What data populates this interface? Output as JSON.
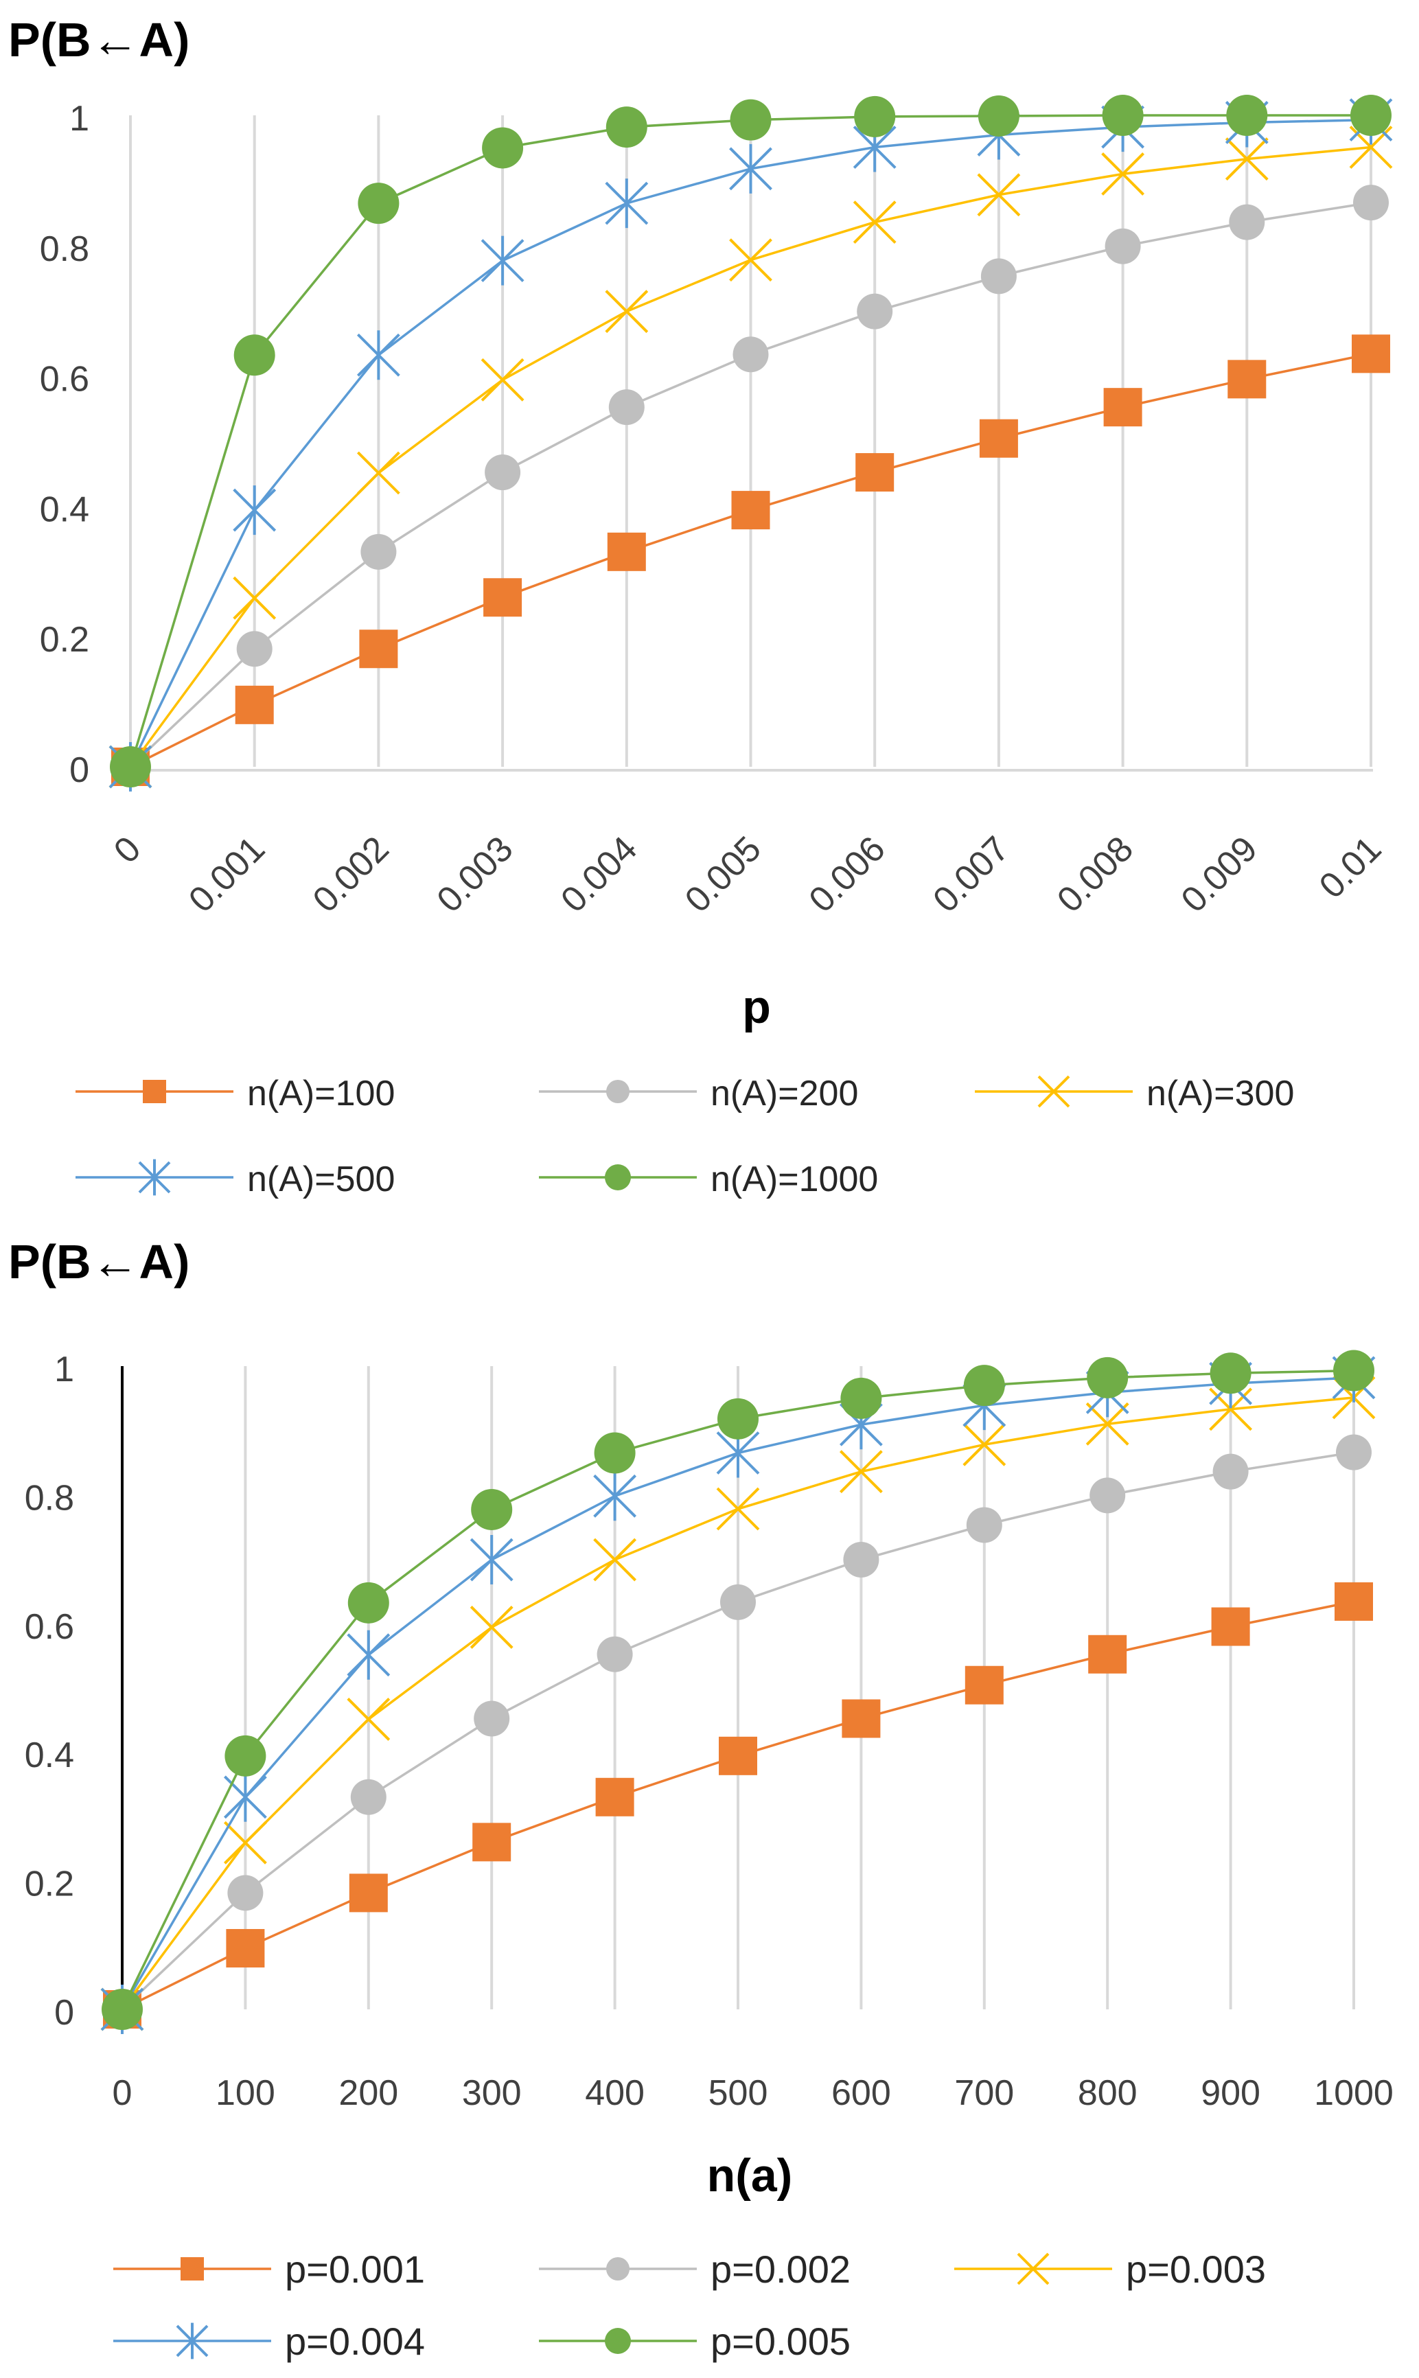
{
  "colors": {
    "series1": "#ED7D31",
    "series2": "#BFBFBF",
    "series3": "#FFC000",
    "series4": "#5B9BD5",
    "series5": "#70AD47",
    "grid": "#D9D9D9",
    "tick_text": "#404040"
  },
  "chart_data": [
    {
      "type": "line",
      "title": "",
      "ylabel": "P(B←A)",
      "xlabel": "p",
      "categories": [
        "0",
        "0.001",
        "0.002",
        "0.003",
        "0.004",
        "0.005",
        "0.006",
        "0.007",
        "0.008",
        "0.009",
        "0.01"
      ],
      "yticks": [
        "0",
        "0.2",
        "0.4",
        "0.6",
        "0.8",
        "1"
      ],
      "ylim": [
        0,
        1
      ],
      "grid": "vertical",
      "legend_position": "bottom",
      "series": [
        {
          "name": "n(A)=100",
          "marker": "square",
          "values": [
            0,
            0.095,
            0.181,
            0.26,
            0.33,
            0.394,
            0.452,
            0.504,
            0.552,
            0.595,
            0.634
          ]
        },
        {
          "name": "n(A)=200",
          "marker": "circle",
          "values": [
            0,
            0.181,
            0.33,
            0.452,
            0.552,
            0.633,
            0.699,
            0.753,
            0.799,
            0.836,
            0.866
          ]
        },
        {
          "name": "n(A)=300",
          "marker": "x",
          "values": [
            0,
            0.259,
            0.451,
            0.594,
            0.699,
            0.778,
            0.836,
            0.878,
            0.91,
            0.933,
            0.951
          ]
        },
        {
          "name": "n(A)=500",
          "marker": "star",
          "values": [
            0,
            0.394,
            0.632,
            0.777,
            0.865,
            0.918,
            0.951,
            0.97,
            0.982,
            0.989,
            0.993
          ]
        },
        {
          "name": "n(A)=1000",
          "marker": "circle-big",
          "values": [
            0,
            0.632,
            0.865,
            0.95,
            0.982,
            0.993,
            0.998,
            0.999,
            1,
            1,
            1
          ]
        }
      ]
    },
    {
      "type": "line",
      "title": "",
      "ylabel": "P(B←A)",
      "xlabel": "n(a)",
      "categories": [
        "0",
        "100",
        "200",
        "300",
        "400",
        "500",
        "600",
        "700",
        "800",
        "900",
        "1000"
      ],
      "yticks": [
        "0",
        "0.2",
        "0.4",
        "0.6",
        "0.8",
        "1"
      ],
      "ylim": [
        0,
        1
      ],
      "grid": "vertical",
      "legend_position": "bottom",
      "series": [
        {
          "name": "p=0.001",
          "marker": "square",
          "values": [
            0,
            0.095,
            0.181,
            0.26,
            0.33,
            0.394,
            0.452,
            0.504,
            0.552,
            0.595,
            0.634
          ]
        },
        {
          "name": "p=0.002",
          "marker": "circle",
          "values": [
            0,
            0.181,
            0.33,
            0.452,
            0.552,
            0.633,
            0.699,
            0.753,
            0.799,
            0.836,
            0.866
          ]
        },
        {
          "name": "p=0.003",
          "marker": "x",
          "values": [
            0,
            0.259,
            0.451,
            0.594,
            0.699,
            0.778,
            0.836,
            0.878,
            0.91,
            0.933,
            0.951
          ]
        },
        {
          "name": "p=0.004",
          "marker": "star",
          "values": [
            0,
            0.33,
            0.551,
            0.699,
            0.798,
            0.865,
            0.909,
            0.939,
            0.959,
            0.973,
            0.982
          ]
        },
        {
          "name": "p=0.005",
          "marker": "circle-big",
          "values": [
            0,
            0.394,
            0.632,
            0.777,
            0.865,
            0.918,
            0.95,
            0.97,
            0.982,
            0.989,
            0.993
          ]
        }
      ]
    }
  ]
}
